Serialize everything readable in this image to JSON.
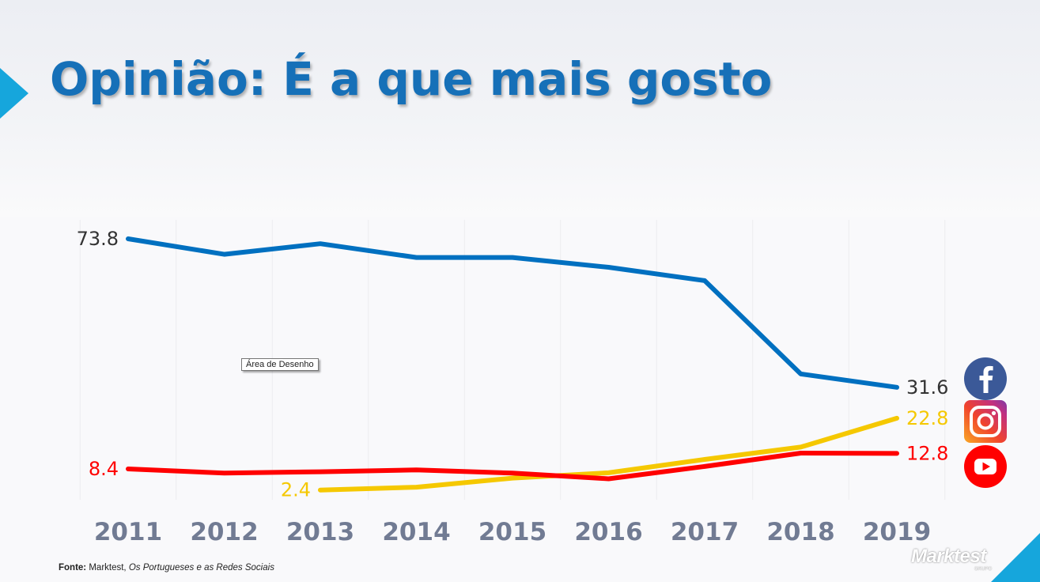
{
  "page": {
    "title": "Opinião: É a que mais gosto",
    "source_label": "Fonte:",
    "source_publisher": "Marktest,",
    "source_title": "Os Portugueses e as Redes Sociais",
    "tooltip": "Área de Desenho",
    "logo_text": "Marktest",
    "logo_sub": "GRUPO"
  },
  "colors": {
    "title": "#1670b8",
    "accent": "#16a6dc",
    "facebook": "#0070c0",
    "instagram": "#f5c800",
    "youtube": "#ff0000"
  },
  "icons": [
    "facebook-icon",
    "instagram-icon",
    "youtube-icon"
  ],
  "chart_data": {
    "type": "line",
    "x": [
      "2011",
      "2012",
      "2013",
      "2014",
      "2015",
      "2016",
      "2017",
      "2018",
      "2019"
    ],
    "ylim": [
      0,
      80
    ],
    "grid": "vertical",
    "series": [
      {
        "key": "facebook",
        "color": "#0070c0",
        "label_color": "#333333",
        "values": [
          73.8,
          69.4,
          72.4,
          68.5,
          68.5,
          65.7,
          61.9,
          35.4,
          31.6
        ]
      },
      {
        "key": "instagram",
        "color": "#f5c800",
        "label_color": "#f5c800",
        "values": [
          null,
          null,
          2.4,
          3.2,
          5.8,
          7.3,
          11.1,
          14.6,
          22.8
        ]
      },
      {
        "key": "youtube",
        "color": "#ff0000",
        "label_color": "#ff0000",
        "values": [
          8.4,
          7.2,
          7.6,
          8.1,
          7.2,
          5.6,
          9.1,
          12.9,
          12.8
        ]
      }
    ],
    "data_labels": [
      {
        "series": "facebook",
        "index": 0,
        "text": "73.8",
        "side": "left"
      },
      {
        "series": "facebook",
        "index": 8,
        "text": "31.6",
        "side": "right"
      },
      {
        "series": "instagram",
        "index": 2,
        "text": "2.4",
        "side": "left"
      },
      {
        "series": "instagram",
        "index": 8,
        "text": "22.8",
        "side": "right"
      },
      {
        "series": "youtube",
        "index": 0,
        "text": "8.4",
        "side": "left"
      },
      {
        "series": "youtube",
        "index": 8,
        "text": "12.8",
        "side": "right"
      }
    ]
  }
}
